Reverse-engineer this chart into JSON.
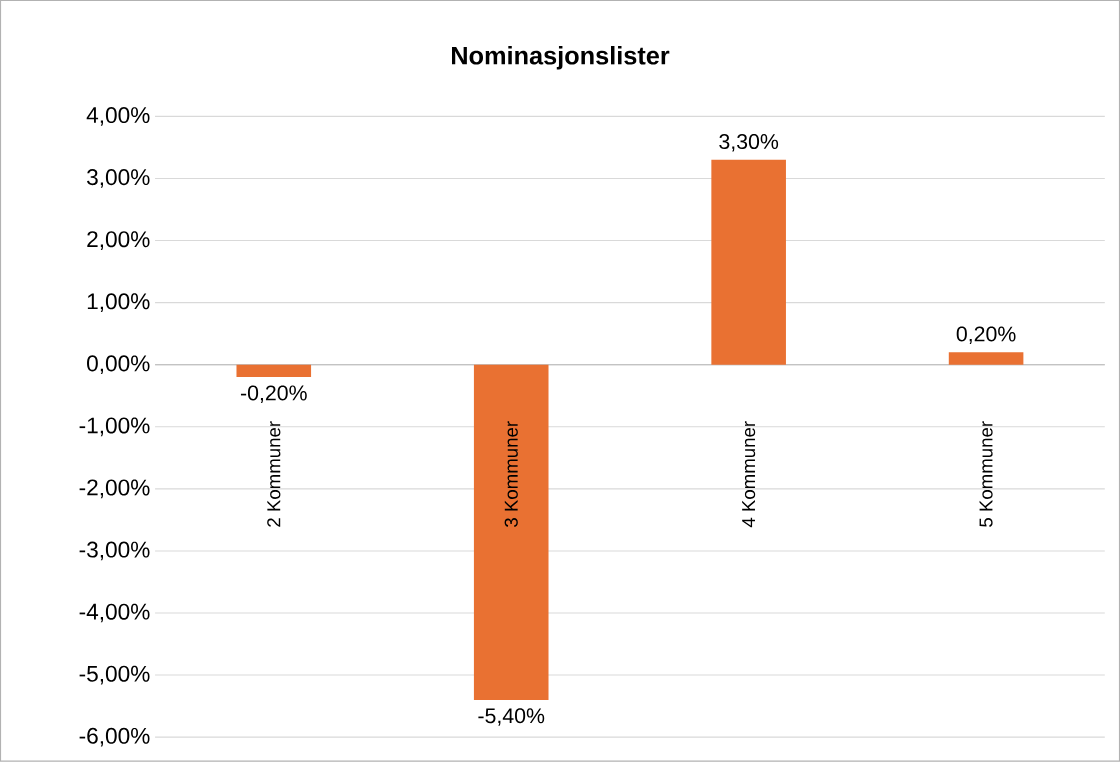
{
  "chart_data": {
    "type": "bar",
    "title": "Nominasjonslister",
    "categories": [
      "2 Kommuner",
      "3 Kommuner",
      "4 Kommuner",
      "5 Kommuner"
    ],
    "values": [
      -0.2,
      -5.4,
      3.3,
      0.2
    ],
    "value_labels": [
      "-0,20%",
      "-5,40%",
      "3,30%",
      "0,20%"
    ],
    "color": "#e97132",
    "ylim": [
      -6,
      4
    ],
    "yticks": [
      {
        "value": -6,
        "label": "-6,00%"
      },
      {
        "value": -5,
        "label": "-5,00%"
      },
      {
        "value": -4,
        "label": "-4,00%"
      },
      {
        "value": -3,
        "label": "-3,00%"
      },
      {
        "value": -2,
        "label": "-2,00%"
      },
      {
        "value": -1,
        "label": "-1,00%"
      },
      {
        "value": 0,
        "label": "0,00%"
      },
      {
        "value": 1,
        "label": "1,00%"
      },
      {
        "value": 2,
        "label": "2,00%"
      },
      {
        "value": 3,
        "label": "3,00%"
      },
      {
        "value": 4,
        "label": "4,00%"
      }
    ],
    "grid": "y"
  }
}
